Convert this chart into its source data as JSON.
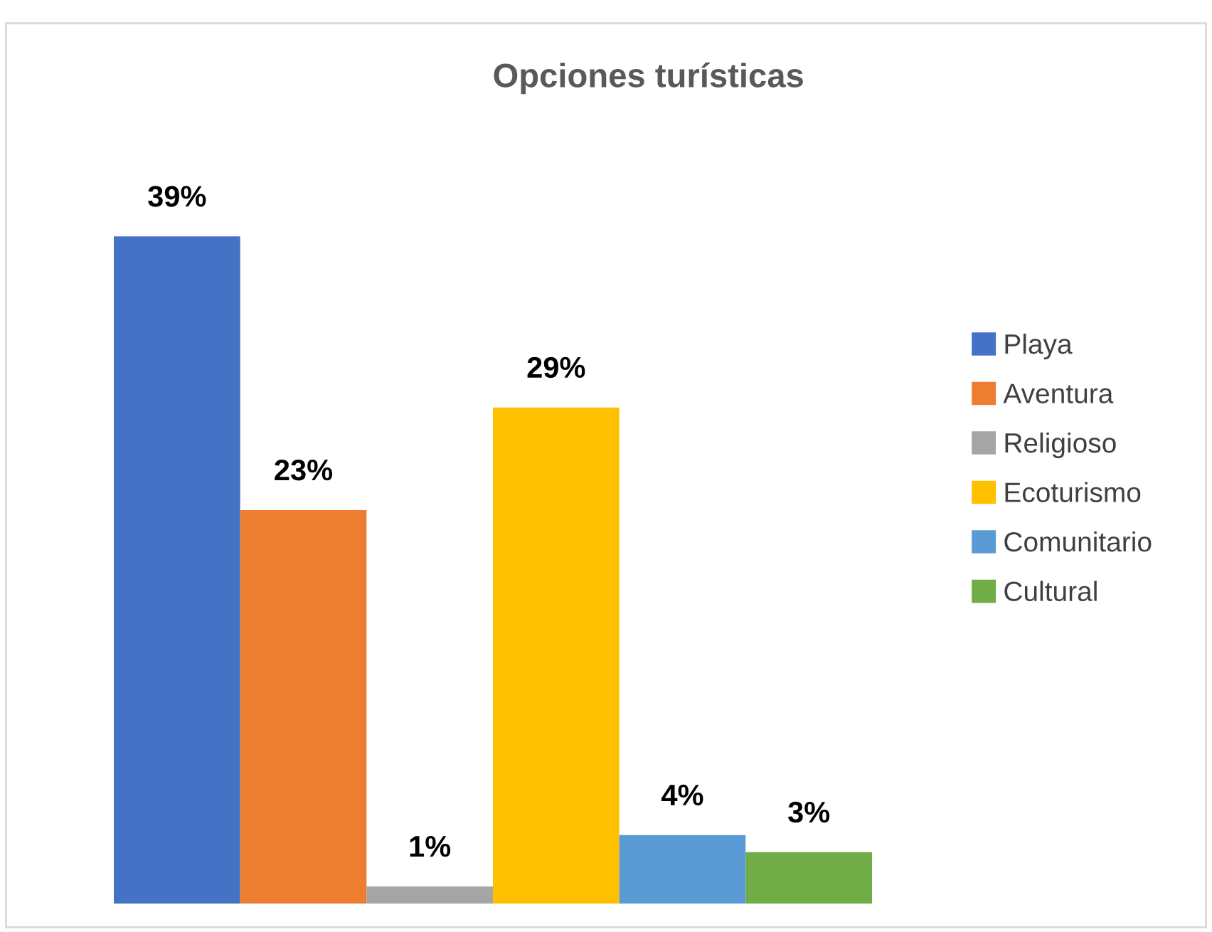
{
  "chart_data": {
    "type": "bar",
    "title": "Opciones turísticas",
    "categories": [
      null
    ],
    "series": [
      {
        "name": "Playa",
        "color": "#4472c4",
        "values": [
          39
        ],
        "value_labels": [
          "39%"
        ]
      },
      {
        "name": "Aventura",
        "color": "#ed7d31",
        "values": [
          23
        ],
        "value_labels": [
          "23%"
        ]
      },
      {
        "name": "Religioso",
        "color": "#a5a5a5",
        "values": [
          1
        ],
        "value_labels": [
          "1%"
        ]
      },
      {
        "name": "Ecoturismo",
        "color": "#ffc000",
        "values": [
          29
        ],
        "value_labels": [
          "29%"
        ]
      },
      {
        "name": "Comunitario",
        "color": "#5b9bd5",
        "values": [
          4
        ],
        "value_labels": [
          "4%"
        ]
      },
      {
        "name": "Cultural",
        "color": "#70ad47",
        "values": [
          3
        ],
        "value_labels": [
          "3%"
        ]
      }
    ],
    "legend": "right",
    "grid": false
  }
}
